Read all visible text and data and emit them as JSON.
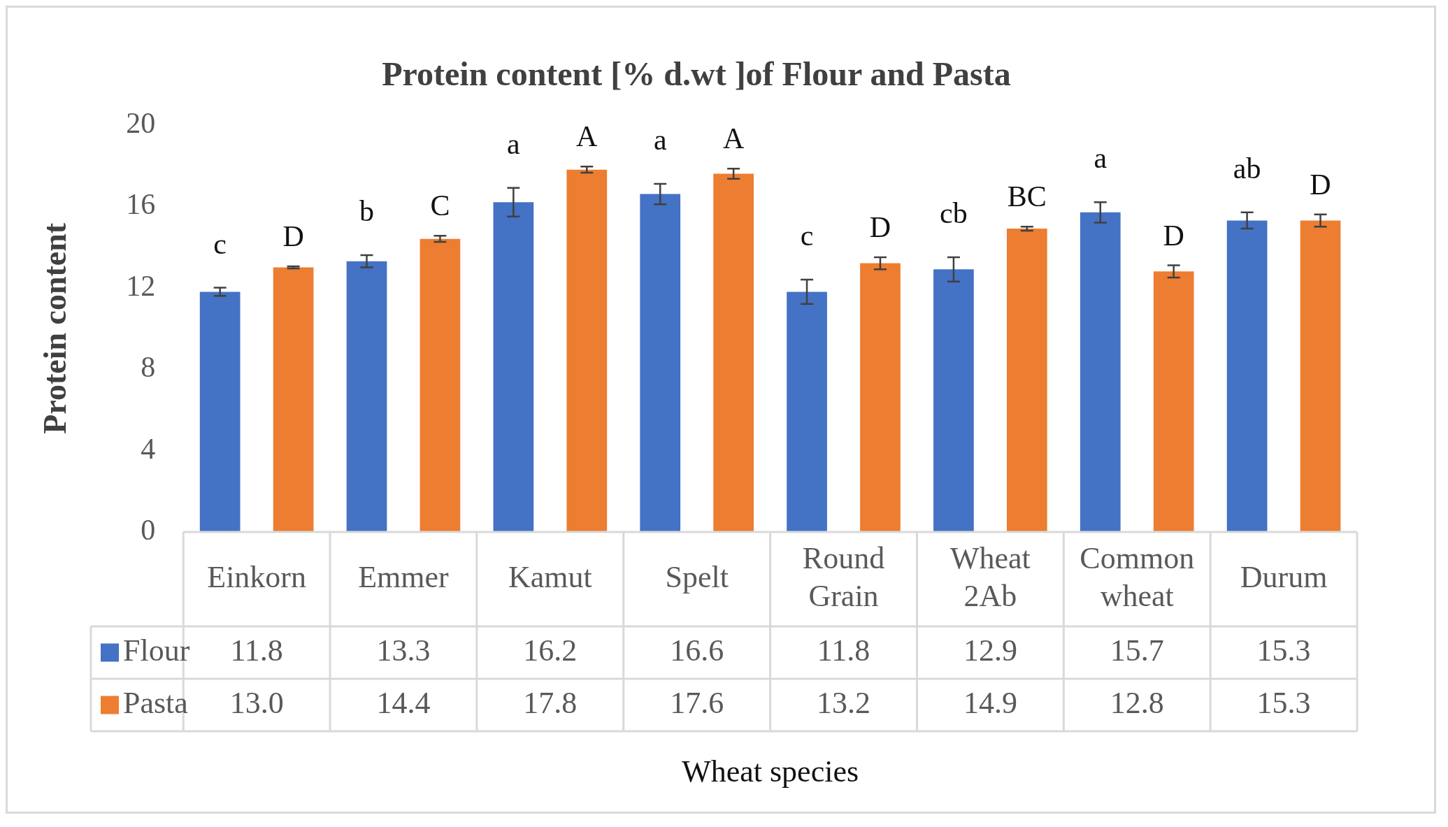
{
  "chart_data": {
    "type": "bar",
    "title": "Protein content [% d.wt ]of Flour and Pasta",
    "xlabel": "Wheat species",
    "ylabel": "Protein content",
    "categories": [
      "Einkorn",
      "Emmer",
      "Kamut",
      "Spelt",
      "Round Grain",
      "Wheat 2Ab",
      "Common wheat",
      "Durum"
    ],
    "series": [
      {
        "name": "Flour",
        "color": "#4472c4",
        "values": [
          11.8,
          13.3,
          16.2,
          16.6,
          11.8,
          12.9,
          15.7,
          15.3
        ],
        "value_labels": [
          "11.8",
          "13.3",
          "16.2",
          "16.6",
          "11.8",
          "12.9",
          "15.7",
          "15.3"
        ],
        "errors": [
          0.2,
          0.3,
          0.7,
          0.5,
          0.6,
          0.6,
          0.5,
          0.4
        ]
      },
      {
        "name": "Pasta",
        "color": "#ed7d31",
        "values": [
          13.0,
          14.4,
          17.8,
          17.6,
          13.2,
          14.9,
          12.8,
          15.3
        ],
        "value_labels": [
          "13.0",
          "14.4",
          "17.8",
          "17.6",
          "13.2",
          "14.9",
          "12.8",
          "15.3"
        ],
        "errors": [
          0.05,
          0.15,
          0.15,
          0.25,
          0.3,
          0.1,
          0.3,
          0.3
        ]
      }
    ],
    "ylim": [
      0,
      20
    ],
    "yticks": [
      0,
      4,
      8,
      12,
      16,
      20
    ],
    "grid": false,
    "legend": "bottom",
    "annotations": [
      "c",
      "D",
      "b",
      "C",
      "a",
      "A",
      "a",
      "A",
      "c",
      "D",
      "cb",
      "BC",
      "a",
      "D",
      "ab",
      "D"
    ]
  }
}
